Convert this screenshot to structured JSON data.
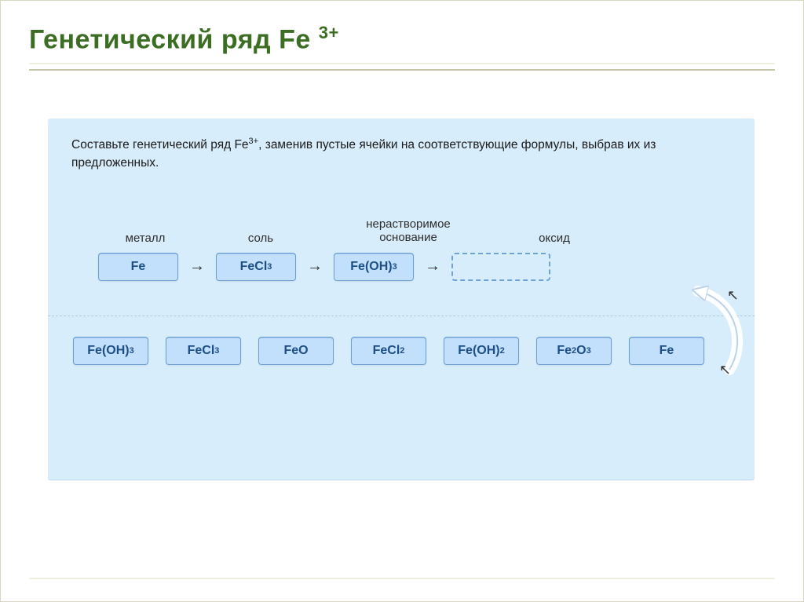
{
  "title_html": "Генетический ряд Fe <sup>3+</sup>",
  "panel": {
    "prompt_html": "Составьте генетический ряд Fe<span class='sup'>3+</span>, заменив пустые ячейки на соответствующие формулы, выбрав их из предложенных.",
    "labels": {
      "metal": "металл",
      "salt": "соль",
      "base_html": "нерастворимое<br>основание",
      "oxide": "оксид"
    },
    "chain": [
      {
        "html": "Fe",
        "empty": false
      },
      {
        "html": "FeCl<span class='sub'>3</span>",
        "empty": false
      },
      {
        "html": "Fe(OH)<span class='sub'>3</span>",
        "empty": false
      },
      {
        "html": "",
        "empty": true
      }
    ],
    "arrow_glyph": "→",
    "options": [
      {
        "html": "Fe(OH)<span class='sub'>3</span>"
      },
      {
        "html": "FeCl<span class='sub'>3</span>"
      },
      {
        "html": "FeO"
      },
      {
        "html": "FeCl<span class='sub'>2</span>"
      },
      {
        "html": "Fe(OH)<span class='sub'>2</span>"
      },
      {
        "html": "Fe<span class='sub'>2</span>O<span class='sub'>3</span>"
      },
      {
        "html": "Fe"
      }
    ]
  },
  "colors": {
    "title": "#3b6e22",
    "panel_bg": "#d8edfb",
    "chip_bg": "#c2e0fb",
    "chip_border": "#6a9fd3",
    "chip_text": "#1d4e85",
    "dashed_border": "#6fa3d7",
    "slide_border": "#d6d6c2"
  }
}
